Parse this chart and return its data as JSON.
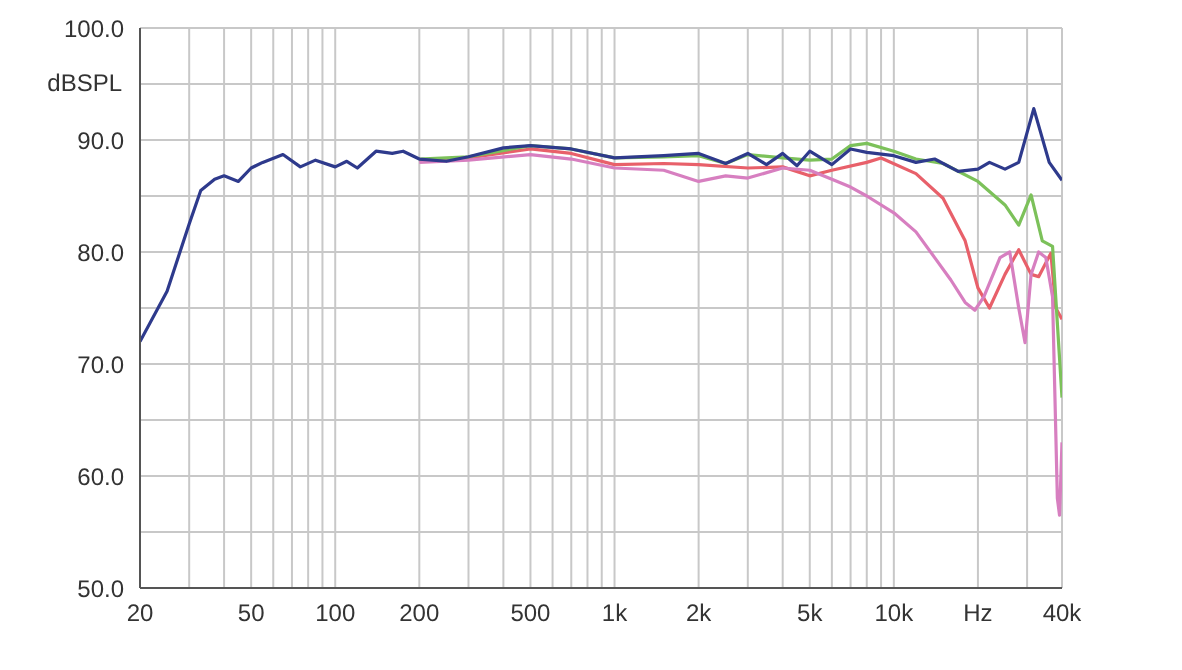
{
  "chart_data": {
    "type": "line",
    "ylabel": "dBSPL",
    "log": "x",
    "grid": true,
    "marker": "none",
    "line_style": "solid",
    "xlim": [
      20,
      40000
    ],
    "ylim": [
      50,
      100
    ],
    "xticks": [
      20,
      {
        "value": 30,
        "label": null
      },
      {
        "value": 40,
        "label": null
      },
      50,
      {
        "value": 60,
        "label": null
      },
      {
        "value": 70,
        "label": null
      },
      {
        "value": 80,
        "label": null
      },
      {
        "value": 90,
        "label": null
      },
      100,
      200,
      {
        "value": 300,
        "label": null
      },
      {
        "value": 400,
        "label": null
      },
      500,
      {
        "value": 600,
        "label": null
      },
      {
        "value": 700,
        "label": null
      },
      {
        "value": 800,
        "label": null
      },
      {
        "value": 900,
        "label": null
      },
      {
        "value": 1000,
        "label": "1k"
      },
      {
        "value": 2000,
        "label": "2k"
      },
      {
        "value": 3000,
        "label": null
      },
      {
        "value": 4000,
        "label": null
      },
      {
        "value": 5000,
        "label": "5k"
      },
      {
        "value": 6000,
        "label": null
      },
      {
        "value": 7000,
        "label": null
      },
      {
        "value": 8000,
        "label": null
      },
      {
        "value": 9000,
        "label": null
      },
      {
        "value": 10000,
        "label": "10k"
      },
      {
        "value": 20000,
        "label": "Hz"
      },
      {
        "value": 30000,
        "label": null
      },
      {
        "value": 40000,
        "label": "40k"
      }
    ],
    "yticks": [
      {
        "value": 50,
        "label": "50.0"
      },
      {
        "value": 55,
        "label": null
      },
      {
        "value": 60,
        "label": "60.0"
      },
      {
        "value": 65,
        "label": null
      },
      {
        "value": 70,
        "label": "70.0"
      },
      {
        "value": 75,
        "label": null
      },
      {
        "value": 80,
        "label": "80.0"
      },
      {
        "value": 85,
        "label": null
      },
      {
        "value": 90,
        "label": "90.0"
      },
      {
        "value": 95,
        "label": null
      },
      {
        "value": 100,
        "label": "100.0"
      }
    ],
    "series": [
      {
        "color": "#e8606a",
        "x": [
          200,
          300,
          500,
          700,
          1000,
          1500,
          2000,
          3000,
          4000,
          5000,
          6000,
          8000,
          9000,
          12000,
          15000,
          18000,
          20000,
          22000,
          25000,
          28000,
          31000,
          33000,
          36500,
          38000,
          40000
        ],
        "values": [
          88.2,
          88.4,
          89.2,
          88.8,
          87.8,
          87.9,
          87.8,
          87.5,
          87.6,
          86.8,
          87.3,
          88,
          88.4,
          87,
          84.8,
          81,
          76.8,
          75,
          78,
          80.2,
          78,
          77.8,
          79.9,
          75,
          74
        ]
      },
      {
        "color": "#d77fc0",
        "x": [
          200,
          300,
          500,
          700,
          1000,
          1500,
          2000,
          2500,
          3000,
          4000,
          5000,
          6000,
          7000,
          8000,
          10000,
          12000,
          14000,
          16000,
          18000,
          19500,
          21000,
          24000,
          26000,
          28000,
          29500,
          31000,
          33000,
          35000,
          37000,
          38500,
          39200,
          40000
        ],
        "values": [
          88,
          88.2,
          88.7,
          88.3,
          87.5,
          87.3,
          86.3,
          86.8,
          86.6,
          87.5,
          87.3,
          86.5,
          85.8,
          85,
          83.5,
          81.8,
          79.5,
          77.5,
          75.5,
          74.8,
          76,
          79.5,
          80,
          75,
          71.9,
          78,
          80,
          79.5,
          76,
          58,
          56.5,
          63
        ]
      },
      {
        "color": "#7cc15a",
        "x": [
          200,
          300,
          500,
          700,
          1000,
          1500,
          2000,
          2500,
          3000,
          4000,
          5000,
          6000,
          7000,
          8000,
          10000,
          12000,
          15000,
          20000,
          25000,
          28000,
          31000,
          34000,
          37000,
          40000
        ],
        "values": [
          88.3,
          88.5,
          89.5,
          89.2,
          88.4,
          88.5,
          88.6,
          87.9,
          88.7,
          88.4,
          88.2,
          88.3,
          89.5,
          89.7,
          89,
          88.3,
          87.9,
          86.3,
          84.2,
          82.4,
          85.1,
          81,
          80.5,
          67
        ]
      },
      {
        "color": "#2e3a8c",
        "x": [
          20,
          25,
          30,
          33,
          37,
          40,
          45,
          50,
          55,
          65,
          75,
          85,
          100,
          110,
          120,
          140,
          160,
          175,
          200,
          250,
          300,
          400,
          500,
          700,
          1000,
          1500,
          2000,
          2500,
          3000,
          3500,
          4000,
          4500,
          5000,
          6000,
          7000,
          8000,
          10000,
          12000,
          14000,
          17000,
          20000,
          22000,
          25000,
          28000,
          31700,
          36000,
          40000
        ],
        "values": [
          72,
          76.5,
          82.5,
          85.5,
          86.5,
          86.8,
          86.3,
          87.5,
          88,
          88.7,
          87.6,
          88.2,
          87.6,
          88.1,
          87.5,
          89,
          88.8,
          89,
          88.3,
          88.1,
          88.5,
          89.3,
          89.5,
          89.2,
          88.4,
          88.6,
          88.8,
          87.9,
          88.8,
          87.8,
          88.8,
          87.7,
          89,
          87.8,
          89.2,
          88.9,
          88.6,
          88,
          88.3,
          87.2,
          87.4,
          88,
          87.4,
          88,
          92.8,
          88,
          86.4
        ]
      }
    ]
  }
}
